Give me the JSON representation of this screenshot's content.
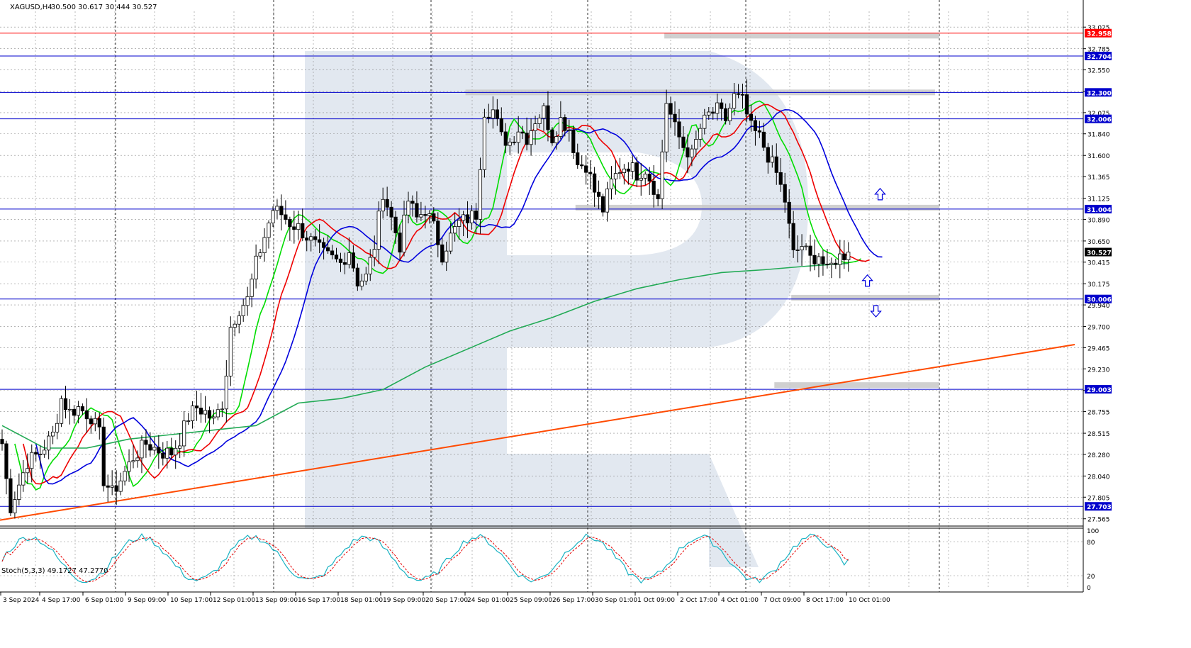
{
  "header": {
    "symbol_tf": "XAGUSD,H4",
    "ohlc": "30.500 30.617 30.444 30.527"
  },
  "stoch": {
    "label": "Stoch(5,3,3) 49.1727 47.2770",
    "levels": [
      "100",
      "80",
      "20",
      "0"
    ]
  },
  "colors": {
    "bull": "#ffffff",
    "bear": "#000000",
    "grid": "#8c8c8c",
    "resistance": "#ff0000",
    "level": "#0000cc",
    "trend": "#ff4a00",
    "ma_green": "#00dd00",
    "ma_red": "#ee0000",
    "ma_blue": "#0000dd",
    "ma_long": "#22aa55",
    "zone": "#c8c8c8",
    "watermark": "#e2e8f0",
    "stoch_main": "#1ab3c3",
    "stoch_signal": "#e60000"
  },
  "chart_data": {
    "type": "candlestick",
    "symbol": "XAGUSD",
    "timeframe": "H4",
    "ylim": [
      27.5,
      33.2
    ],
    "y_ticks": [
      "33.025",
      "32.785",
      "32.550",
      "32.310",
      "32.075",
      "31.840",
      "31.600",
      "31.365",
      "31.125",
      "30.890",
      "30.650",
      "30.415",
      "30.175",
      "29.940",
      "29.700",
      "29.465",
      "29.230",
      "28.990",
      "28.755",
      "28.515",
      "28.280",
      "28.040",
      "27.805",
      "27.565"
    ],
    "x_labels": [
      "3 Sep 2024",
      "4 Sep 17:00",
      "6 Sep 01:00",
      "9 Sep 09:00",
      "10 Sep 17:00",
      "12 Sep 01:00",
      "13 Sep 09:00",
      "16 Sep 17:00",
      "18 Sep 01:00",
      "19 Sep 09:00",
      "20 Sep 17:00",
      "24 Sep 01:00",
      "25 Sep 09:00",
      "26 Sep 17:00",
      "30 Sep 01:00",
      "1 Oct 09:00",
      "2 Oct 17:00",
      "4 Oct 01:00",
      "7 Oct 09:00",
      "8 Oct 17:00",
      "10 Oct 01:00"
    ],
    "level_lines": [
      {
        "value": 32.958,
        "label": "32.958",
        "kind": "resistance"
      },
      {
        "value": 32.704,
        "label": "32.704",
        "kind": "level"
      },
      {
        "value": 32.3,
        "label": "32.300",
        "kind": "level"
      },
      {
        "value": 32.006,
        "label": "32.006",
        "kind": "level"
      },
      {
        "value": 31.004,
        "label": "31.004",
        "kind": "level"
      },
      {
        "value": 30.527,
        "label": "30.527",
        "kind": "current"
      },
      {
        "value": 30.006,
        "label": "30.006",
        "kind": "level"
      },
      {
        "value": 29.003,
        "label": "29.003",
        "kind": "level"
      },
      {
        "value": 27.703,
        "label": "27.703",
        "kind": "level"
      }
    ],
    "trendline": {
      "start": [
        0,
        27.55
      ],
      "end": [
        254,
        29.5
      ]
    },
    "zones": [
      {
        "x0": 157,
        "x1": 222,
        "value": 32.93
      },
      {
        "x0": 110,
        "x1": 221,
        "value": 32.3
      },
      {
        "x0": 136,
        "x1": 222,
        "value": 31.02
      },
      {
        "x0": 187,
        "x1": 222,
        "value": 30.02
      },
      {
        "x0": 183,
        "x1": 222,
        "value": 29.05
      }
    ],
    "arrows": [
      {
        "x": 208,
        "value": 31.17,
        "dir": "up"
      },
      {
        "x": 205,
        "value": 30.21,
        "dir": "up"
      },
      {
        "x": 207,
        "value": 29.87,
        "dir": "down"
      }
    ],
    "anchors": [
      [
        0,
        28.4
      ],
      [
        1,
        28.0
      ],
      [
        2,
        27.7
      ],
      [
        4,
        27.95
      ],
      [
        6,
        28.2
      ],
      [
        9,
        28.3
      ],
      [
        12,
        28.5
      ],
      [
        14,
        28.9
      ],
      [
        16,
        28.75
      ],
      [
        18,
        28.8
      ],
      [
        21,
        28.7
      ],
      [
        23,
        28.5
      ],
      [
        24,
        28.0
      ],
      [
        26,
        27.85
      ],
      [
        28,
        28.0
      ],
      [
        31,
        28.25
      ],
      [
        34,
        28.4
      ],
      [
        38,
        28.3
      ],
      [
        40,
        28.3
      ],
      [
        42,
        28.45
      ],
      [
        44,
        28.7
      ],
      [
        46,
        28.8
      ],
      [
        48,
        28.75
      ],
      [
        50,
        28.65
      ],
      [
        52,
        28.85
      ],
      [
        53,
        29.2
      ],
      [
        54,
        29.7
      ],
      [
        56,
        29.9
      ],
      [
        58,
        30.0
      ],
      [
        60,
        30.4
      ],
      [
        62,
        30.7
      ],
      [
        64,
        31.0
      ],
      [
        66,
        30.95
      ],
      [
        68,
        30.85
      ],
      [
        70,
        30.8
      ],
      [
        72,
        30.7
      ],
      [
        74,
        30.6
      ],
      [
        76,
        30.5
      ],
      [
        78,
        30.45
      ],
      [
        80,
        30.4
      ],
      [
        82,
        30.55
      ],
      [
        84,
        30.2
      ],
      [
        86,
        30.25
      ],
      [
        88,
        30.6
      ],
      [
        90,
        31.2
      ],
      [
        92,
        30.9
      ],
      [
        94,
        30.6
      ],
      [
        96,
        31.1
      ],
      [
        98,
        30.9
      ],
      [
        100,
        31.0
      ],
      [
        102,
        30.8
      ],
      [
        104,
        30.5
      ],
      [
        106,
        30.7
      ],
      [
        108,
        30.85
      ],
      [
        110,
        30.9
      ],
      [
        112,
        30.95
      ],
      [
        114,
        32.1
      ],
      [
        116,
        32.1
      ],
      [
        118,
        31.8
      ],
      [
        120,
        31.75
      ],
      [
        122,
        31.9
      ],
      [
        124,
        31.8
      ],
      [
        126,
        32.0
      ],
      [
        128,
        32.1
      ],
      [
        130,
        31.8
      ],
      [
        132,
        32.0
      ],
      [
        134,
        31.9
      ],
      [
        136,
        31.5
      ],
      [
        138,
        31.5
      ],
      [
        140,
        31.2
      ],
      [
        142,
        31.0
      ],
      [
        144,
        31.3
      ],
      [
        146,
        31.45
      ],
      [
        148,
        31.5
      ],
      [
        150,
        31.4
      ],
      [
        152,
        31.45
      ],
      [
        154,
        31.25
      ],
      [
        155,
        31.1
      ],
      [
        157,
        32.2
      ],
      [
        159,
        31.9
      ],
      [
        161,
        31.7
      ],
      [
        163,
        31.6
      ],
      [
        165,
        31.9
      ],
      [
        167,
        32.05
      ],
      [
        169,
        32.1
      ],
      [
        171,
        32.0
      ],
      [
        173,
        32.25
      ],
      [
        175,
        32.2
      ],
      [
        177,
        31.9
      ],
      [
        179,
        31.8
      ],
      [
        181,
        31.6
      ],
      [
        183,
        31.4
      ],
      [
        185,
        31.1
      ],
      [
        187,
        30.5
      ],
      [
        189,
        30.6
      ],
      [
        191,
        30.45
      ],
      [
        193,
        30.5
      ],
      [
        195,
        30.3
      ],
      [
        197,
        30.45
      ],
      [
        199,
        30.5
      ],
      [
        200,
        30.53
      ]
    ],
    "long_ma_points": [
      [
        0,
        28.6
      ],
      [
        10,
        28.35
      ],
      [
        20,
        28.35
      ],
      [
        30,
        28.45
      ],
      [
        40,
        28.5
      ],
      [
        50,
        28.55
      ],
      [
        60,
        28.6
      ],
      [
        70,
        28.85
      ],
      [
        80,
        28.9
      ],
      [
        90,
        29.0
      ],
      [
        100,
        29.25
      ],
      [
        110,
        29.45
      ],
      [
        120,
        29.65
      ],
      [
        130,
        29.8
      ],
      [
        140,
        29.98
      ],
      [
        150,
        30.12
      ],
      [
        160,
        30.22
      ],
      [
        170,
        30.3
      ],
      [
        180,
        30.33
      ],
      [
        190,
        30.37
      ],
      [
        200,
        30.4
      ]
    ],
    "current_price": 30.527
  }
}
